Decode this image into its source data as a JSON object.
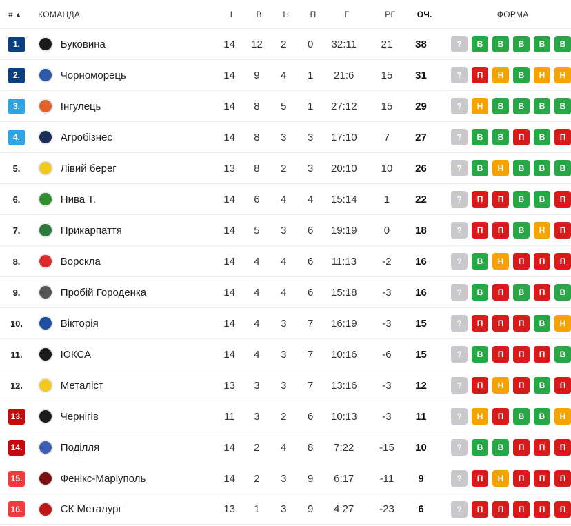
{
  "header": {
    "pos": "#",
    "team": "КОМАНДА",
    "played": "І",
    "won": "В",
    "draw": "Н",
    "lost": "П",
    "goals": "Г",
    "gd": "РГ",
    "points": "ОЧ.",
    "form": "ФОРМА"
  },
  "colors": {
    "W": "#27a745",
    "D": "#f4a300",
    "L": "#d71a1a",
    "unknown": "#c9c9cc",
    "pos_navy": "#0c3f7b",
    "pos_blue": "#2ea4e0",
    "pos_red": "#c40c0c",
    "pos_red_light": "#f03c3c"
  },
  "rows": [
    {
      "pos": "1.",
      "team": "Буковина",
      "played": "14",
      "won": "12",
      "draw": "2",
      "lost": "0",
      "goals": "32:11",
      "gd": "21",
      "points": "38",
      "form": [
        "?",
        "В",
        "В",
        "В",
        "В",
        "В"
      ]
    },
    {
      "pos": "2.",
      "team": "Чорноморець",
      "played": "14",
      "won": "9",
      "draw": "4",
      "lost": "1",
      "goals": "21:6",
      "gd": "15",
      "points": "31",
      "form": [
        "?",
        "П",
        "Н",
        "В",
        "Н",
        "Н"
      ]
    },
    {
      "pos": "3.",
      "team": "Інгулець",
      "played": "14",
      "won": "8",
      "draw": "5",
      "lost": "1",
      "goals": "27:12",
      "gd": "15",
      "points": "29",
      "form": [
        "?",
        "Н",
        "В",
        "В",
        "В",
        "В"
      ]
    },
    {
      "pos": "4.",
      "team": "Агробізнес",
      "played": "14",
      "won": "8",
      "draw": "3",
      "lost": "3",
      "goals": "17:10",
      "gd": "7",
      "points": "27",
      "form": [
        "?",
        "В",
        "В",
        "П",
        "В",
        "П"
      ]
    },
    {
      "pos": "5.",
      "team": "Лівий берег",
      "played": "13",
      "won": "8",
      "draw": "2",
      "lost": "3",
      "goals": "20:10",
      "gd": "10",
      "points": "26",
      "form": [
        "?",
        "В",
        "Н",
        "В",
        "В",
        "В"
      ]
    },
    {
      "pos": "6.",
      "team": "Нива Т.",
      "played": "14",
      "won": "6",
      "draw": "4",
      "lost": "4",
      "goals": "15:14",
      "gd": "1",
      "points": "22",
      "form": [
        "?",
        "П",
        "П",
        "В",
        "В",
        "П"
      ]
    },
    {
      "pos": "7.",
      "team": "Прикарпаття",
      "played": "14",
      "won": "5",
      "draw": "3",
      "lost": "6",
      "goals": "19:19",
      "gd": "0",
      "points": "18",
      "form": [
        "?",
        "П",
        "П",
        "В",
        "Н",
        "П"
      ]
    },
    {
      "pos": "8.",
      "team": "Ворскла",
      "played": "14",
      "won": "4",
      "draw": "4",
      "lost": "6",
      "goals": "11:13",
      "gd": "-2",
      "points": "16",
      "form": [
        "?",
        "В",
        "Н",
        "П",
        "П",
        "П"
      ]
    },
    {
      "pos": "9.",
      "team": "Пробій Городенка",
      "played": "14",
      "won": "4",
      "draw": "4",
      "lost": "6",
      "goals": "15:18",
      "gd": "-3",
      "points": "16",
      "form": [
        "?",
        "В",
        "П",
        "В",
        "П",
        "В"
      ]
    },
    {
      "pos": "10.",
      "team": "Вікторія",
      "played": "14",
      "won": "4",
      "draw": "3",
      "lost": "7",
      "goals": "16:19",
      "gd": "-3",
      "points": "15",
      "form": [
        "?",
        "П",
        "П",
        "П",
        "В",
        "Н"
      ]
    },
    {
      "pos": "11.",
      "team": "ЮКСА",
      "played": "14",
      "won": "4",
      "draw": "3",
      "lost": "7",
      "goals": "10:16",
      "gd": "-6",
      "points": "15",
      "form": [
        "?",
        "В",
        "П",
        "П",
        "П",
        "В"
      ]
    },
    {
      "pos": "12.",
      "team": "Металіст",
      "played": "13",
      "won": "3",
      "draw": "3",
      "lost": "7",
      "goals": "13:16",
      "gd": "-3",
      "points": "12",
      "form": [
        "?",
        "П",
        "Н",
        "П",
        "В",
        "П"
      ]
    },
    {
      "pos": "13.",
      "team": "Чернігів",
      "played": "11",
      "won": "3",
      "draw": "2",
      "lost": "6",
      "goals": "10:13",
      "gd": "-3",
      "points": "11",
      "form": [
        "?",
        "Н",
        "П",
        "В",
        "В",
        "Н"
      ]
    },
    {
      "pos": "14.",
      "team": "Поділля",
      "played": "14",
      "won": "2",
      "draw": "4",
      "lost": "8",
      "goals": "7:22",
      "gd": "-15",
      "points": "10",
      "form": [
        "?",
        "В",
        "В",
        "П",
        "П",
        "П"
      ]
    },
    {
      "pos": "15.",
      "team": "Фенікс-Маріуполь",
      "played": "14",
      "won": "2",
      "draw": "3",
      "lost": "9",
      "goals": "6:17",
      "gd": "-11",
      "points": "9",
      "form": [
        "?",
        "П",
        "Н",
        "П",
        "П",
        "П"
      ]
    },
    {
      "pos": "16.",
      "team": "СК Металург",
      "played": "13",
      "won": "1",
      "draw": "3",
      "lost": "9",
      "goals": "4:27",
      "gd": "-23",
      "points": "6",
      "form": [
        "?",
        "П",
        "П",
        "П",
        "П",
        "П"
      ]
    }
  ]
}
